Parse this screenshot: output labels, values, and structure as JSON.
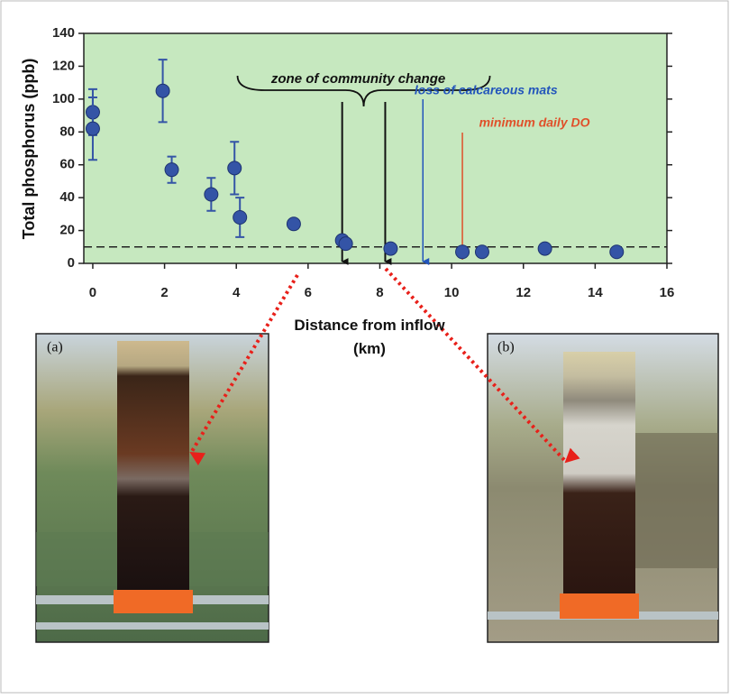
{
  "chart_data": {
    "type": "scatter",
    "y_label": "Total phosphorus (ppb)",
    "x_label": "Distance from inflow (km)",
    "xlim": [
      -0.25,
      16
    ],
    "xticks": [
      0,
      2,
      4,
      6,
      8,
      10,
      12,
      14,
      16
    ],
    "ylim": [
      0,
      140
    ],
    "yticks": [
      0,
      20,
      40,
      60,
      80,
      100,
      120,
      140
    ],
    "background": "#c6e8bf",
    "series": [
      {
        "color": "#3454a6",
        "x": [
          0,
          0,
          1.95,
          2.2,
          3.3,
          3.95,
          4.1,
          5.6,
          6.95,
          7.05,
          8.3,
          10.3,
          10.85,
          12.6,
          14.6
        ],
        "values": [
          92,
          82,
          105,
          57,
          42,
          58,
          28,
          24,
          14,
          12,
          9,
          7,
          7,
          9,
          7
        ],
        "errors": [
          14,
          19,
          19,
          8,
          10,
          16,
          12,
          null,
          null,
          null,
          null,
          null,
          null,
          null,
          null
        ]
      }
    ],
    "reference_line": 10,
    "annotations": [
      {
        "text": "zone of community change",
        "x": [
          6.95,
          8.15
        ],
        "color": "#111111"
      },
      {
        "text": "loss of calcareous mats",
        "x": [
          9.2
        ],
        "color": "#2255bb"
      },
      {
        "text": "minimum daily DO",
        "x": [
          10.3
        ],
        "color": "#e0502a"
      }
    ]
  },
  "photos": [
    {
      "label": "(a)"
    },
    {
      "label": "(b)"
    }
  ]
}
